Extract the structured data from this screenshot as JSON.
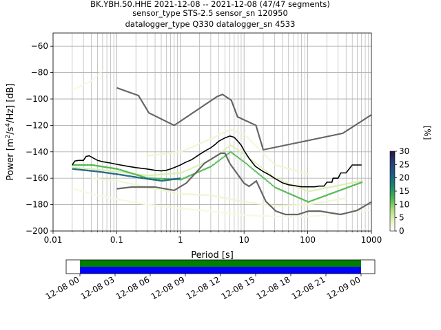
{
  "title": {
    "line1": "BK.YBH.50.HHE   2021-12-08 -- 2021-12-08  (47/47 segments)",
    "line2": "sensor_type STS-2.5 sensor_sn 120950",
    "line3": "datalogger_type Q330 datalogger_sn 4533"
  },
  "chart_data": [
    {
      "type": "heatmap",
      "subtype": "probabilistic power spectral density",
      "xlabel": "Period [s]",
      "ylabel": "Power [m²/s⁴/Hz] [dB]",
      "x_scale": "log",
      "xlim": [
        0.01,
        1000
      ],
      "ylim": [
        -200,
        -50
      ],
      "x_ticks": [
        0.01,
        0.1,
        1,
        10,
        100,
        1000
      ],
      "x_tick_labels": [
        "0.01",
        "0.1",
        "1",
        "10",
        "100",
        "1000"
      ],
      "y_ticks": [
        -200,
        -180,
        -160,
        -140,
        -120,
        -100,
        -80,
        -60
      ],
      "y_tick_labels": [
        "−200",
        "−180",
        "−160",
        "−140",
        "−120",
        "−100",
        "−80",
        "−60"
      ],
      "grid": true,
      "colorbar": {
        "label": "[%]",
        "ticks": [
          0,
          5,
          10,
          15,
          20,
          25,
          30
        ],
        "range": [
          0,
          30
        ],
        "colors": [
          "#ffffff",
          "#d9ef8b",
          "#33aa44",
          "#1a6e82",
          "#233d7a",
          "#2a1640"
        ]
      },
      "noise_models": {
        "color": "#666666",
        "high": {
          "x": [
            0.1,
            0.22,
            0.32,
            0.8,
            3.8,
            4.6,
            6.3,
            7.9,
            15.4,
            20,
            354.8,
            1000
          ],
          "y": [
            -91.5,
            -97.4,
            -110.5,
            -120,
            -98,
            -96.5,
            -101,
            -113.5,
            -120,
            -138.5,
            -126,
            -112
          ]
        },
        "low": {
          "x": [
            0.1,
            0.17,
            0.4,
            0.8,
            1.24,
            2.4,
            4.3,
            5,
            6,
            10,
            12,
            15.6,
            21.9,
            31.6,
            45,
            70,
            101,
            154,
            328,
            600,
            1000
          ],
          "y": [
            -168,
            -166.7,
            -166.7,
            -169.2,
            -163.7,
            -148.6,
            -141.1,
            -141.1,
            -149,
            -163.8,
            -166.2,
            -162.1,
            -177.5,
            -185,
            -187.5,
            -187.5,
            -185,
            -184.9,
            -187.5,
            -184.4,
            -178
          ]
        }
      },
      "median": {
        "color": "#000000",
        "x": [
          0.02,
          0.022,
          0.025,
          0.03,
          0.033,
          0.037,
          0.042,
          0.05,
          0.06,
          0.08,
          0.1,
          0.15,
          0.2,
          0.3,
          0.4,
          0.5,
          0.6,
          0.7,
          0.8,
          1.0,
          1.2,
          1.5,
          2.0,
          2.5,
          3.0,
          3.5,
          4.0,
          5.0,
          6.0,
          7.0,
          8.0,
          9.0,
          10,
          12,
          15,
          20,
          25,
          30,
          40,
          50,
          60,
          80,
          100,
          130,
          150,
          180,
          200,
          240,
          250,
          300,
          330,
          400,
          500,
          700
        ],
        "y": [
          -150,
          -147,
          -146.5,
          -146.5,
          -143.5,
          -143,
          -144.5,
          -146.5,
          -147.5,
          -148.5,
          -149.5,
          -151,
          -152,
          -153,
          -154,
          -154.5,
          -154,
          -153,
          -152,
          -150,
          -148,
          -146,
          -142,
          -139,
          -137,
          -134.5,
          -132,
          -129.5,
          -128,
          -129,
          -132,
          -135,
          -139,
          -145,
          -151,
          -155,
          -157.5,
          -160,
          -163.5,
          -165,
          -165.5,
          -166.5,
          -166.5,
          -166.5,
          -166,
          -166,
          -163,
          -163,
          -160,
          -160,
          -156,
          -156,
          -150,
          -150
        ]
      },
      "hist_bands": [
        {
          "c": 5,
          "x": [
            0.02,
            0.04,
            0.1,
            0.3,
            1,
            3,
            6,
            10,
            30,
            100,
            700
          ],
          "y": [
            -152,
            -153,
            -155,
            -158,
            -156,
            -146,
            -135,
            -142,
            -160,
            -170,
            -162
          ]
        },
        {
          "c": 12,
          "x": [
            0.02,
            0.04,
            0.1,
            0.3,
            1,
            3,
            6,
            10,
            30,
            100,
            700
          ],
          "y": [
            -150,
            -150,
            -153,
            -160,
            -161,
            -151,
            -140,
            -148,
            -167,
            -178,
            -163
          ]
        },
        {
          "c": 20,
          "x": [
            0.02,
            0.05,
            0.1,
            0.25,
            0.5,
            1
          ],
          "y": [
            -153,
            -155,
            -157,
            -160,
            -162,
            -160
          ]
        },
        {
          "c": 3,
          "x": [
            0.3,
            1,
            3,
            6,
            10,
            30,
            100
          ],
          "y": [
            -143,
            -140,
            -130,
            -123,
            -127,
            -150,
            -157
          ]
        },
        {
          "c": 3,
          "x": [
            0.04,
            0.1,
            0.3,
            1,
            3,
            10,
            30,
            100,
            400
          ],
          "y": [
            -160,
            -162,
            -167,
            -172,
            -173,
            -178,
            -181,
            -180,
            -175
          ]
        },
        {
          "c": 2,
          "x": [
            0.02,
            0.04,
            0.1,
            0.3,
            1,
            3,
            10,
            30,
            100,
            300,
            1000
          ],
          "y": [
            -168,
            -172,
            -176,
            -180,
            -183,
            -185,
            -188,
            -189,
            -189,
            -187,
            -184
          ]
        },
        {
          "c": 2,
          "x": [
            0.02,
            0.04,
            0.06
          ],
          "y": [
            -93,
            -86,
            -78
          ]
        }
      ]
    },
    {
      "type": "timeline",
      "xlim_label": [
        "12-08 00",
        "12-09 00"
      ],
      "x_tick_labels": [
        "12-08 00",
        "12-08 03",
        "12-08 06",
        "12-08 09",
        "12-08 12",
        "12-08 15",
        "12-08 18",
        "12-08 21",
        "12-09 00"
      ],
      "coverage": {
        "start_hour": 0,
        "end_hour": 24
      },
      "colors": {
        "data": "#0000ff",
        "used": "#008000"
      }
    }
  ]
}
